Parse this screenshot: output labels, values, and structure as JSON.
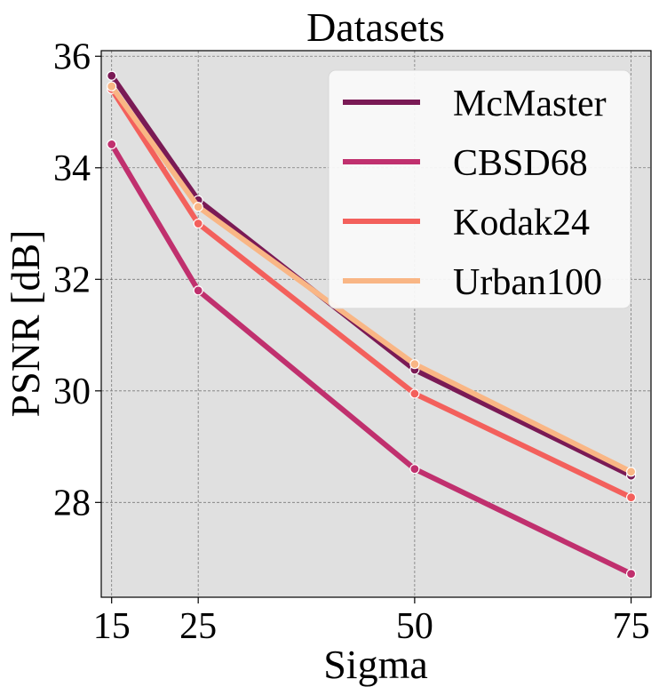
{
  "chart_data": {
    "type": "line",
    "title": "Datasets",
    "xlabel": "Sigma",
    "ylabel": "PSNR [dB]",
    "x": [
      15,
      25,
      50,
      75
    ],
    "xticks": [
      "15",
      "25",
      "50",
      "75"
    ],
    "yticks": [
      "28",
      "30",
      "32",
      "34",
      "36"
    ],
    "xlim": [
      13.8,
      77.3
    ],
    "ylim": [
      26.3,
      36.1
    ],
    "grid": true,
    "legend_position": "top-right",
    "series": [
      {
        "name": "McMaster",
        "color": "#7a1a55",
        "values": [
          35.65,
          33.42,
          30.38,
          28.48
        ]
      },
      {
        "name": "CBSD68",
        "color": "#c0306e",
        "values": [
          34.42,
          31.8,
          28.6,
          26.72
        ]
      },
      {
        "name": "Kodak24",
        "color": "#f3605c",
        "values": [
          35.41,
          33.0,
          29.95,
          28.09
        ]
      },
      {
        "name": "Urban100",
        "color": "#f9b685",
        "values": [
          35.46,
          33.3,
          30.48,
          28.55
        ]
      }
    ]
  }
}
